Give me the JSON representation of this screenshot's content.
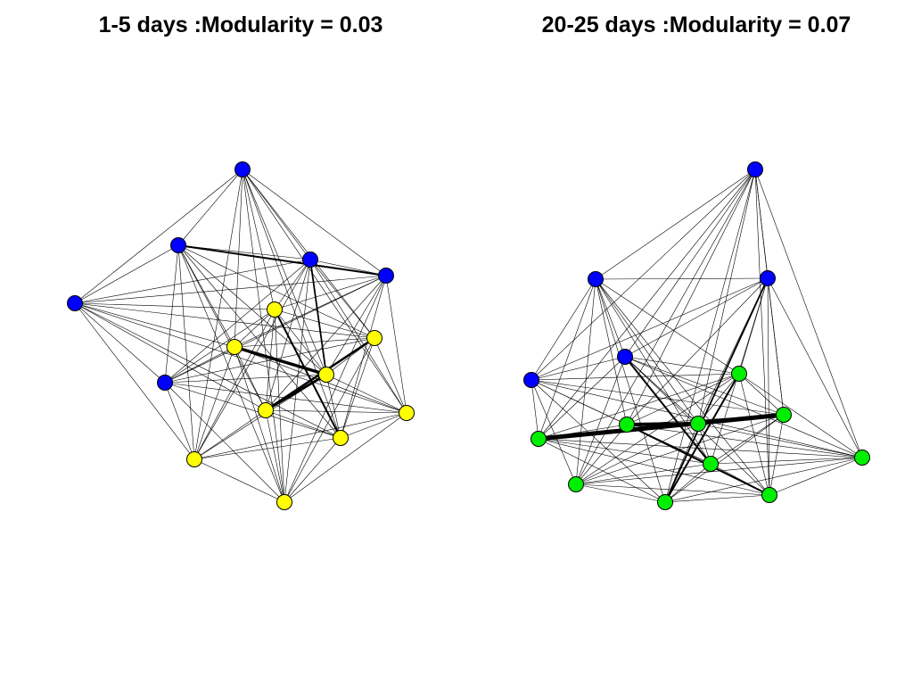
{
  "panels": [
    {
      "title": "1-5 days :Modularity = 0.03",
      "nodes": [
        {
          "id": "L1",
          "color": "#0000ff"
        },
        {
          "id": "L2",
          "color": "#0000ff"
        },
        {
          "id": "L3",
          "color": "#0000ff"
        },
        {
          "id": "L4",
          "color": "#0000ff"
        },
        {
          "id": "L5",
          "color": "#0000ff"
        },
        {
          "id": "L6",
          "color": "#0000ff"
        },
        {
          "id": "L7",
          "color": "#ffff00"
        },
        {
          "id": "L8",
          "color": "#ffff00"
        },
        {
          "id": "L9",
          "color": "#ffff00"
        },
        {
          "id": "L10",
          "color": "#ffff00"
        },
        {
          "id": "L11",
          "color": "#ffff00"
        },
        {
          "id": "L12",
          "color": "#ffff00"
        },
        {
          "id": "L13",
          "color": "#ffff00"
        },
        {
          "id": "L14",
          "color": "#ffff00"
        },
        {
          "id": "L15",
          "color": "#ffff00"
        }
      ]
    },
    {
      "title": "20-25 days :Modularity = 0.07",
      "nodes": [
        {
          "id": "R1",
          "color": "#0000ff"
        },
        {
          "id": "R2",
          "color": "#0000ff"
        },
        {
          "id": "R3",
          "color": "#0000ff"
        },
        {
          "id": "R4",
          "color": "#0000ff"
        },
        {
          "id": "R5",
          "color": "#0000ff"
        },
        {
          "id": "R6",
          "color": "#00ee00"
        },
        {
          "id": "R7",
          "color": "#00ee00"
        },
        {
          "id": "R8",
          "color": "#00ee00"
        },
        {
          "id": "R9",
          "color": "#00ee00"
        },
        {
          "id": "R10",
          "color": "#00ee00"
        },
        {
          "id": "R11",
          "color": "#00ee00"
        },
        {
          "id": "R12",
          "color": "#00ee00"
        },
        {
          "id": "R13",
          "color": "#00ee00"
        },
        {
          "id": "R14",
          "color": "#00ee00"
        },
        {
          "id": "R15",
          "color": "#00ee00"
        }
      ]
    }
  ]
}
